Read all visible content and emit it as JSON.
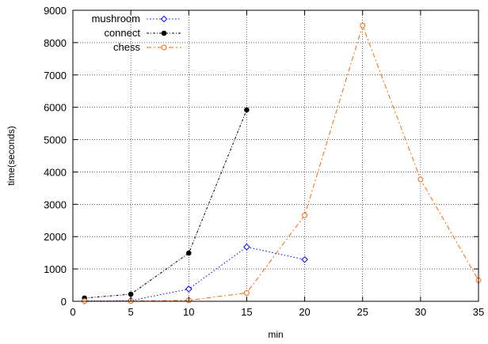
{
  "chart_data": {
    "type": "line",
    "title": "",
    "xlabel": "min",
    "ylabel": "time(seconds)",
    "xlim": [
      0,
      35
    ],
    "ylim": [
      0,
      9000
    ],
    "xticks": [
      0,
      5,
      10,
      15,
      20,
      25,
      30,
      35
    ],
    "yticks": [
      0,
      1000,
      2000,
      3000,
      4000,
      5000,
      6000,
      7000,
      8000,
      9000
    ],
    "grid": true,
    "legend_position": "top-left",
    "series": [
      {
        "name": "mushroom",
        "color": "#0000ff",
        "marker": "diamond-open",
        "dash": "dotted",
        "x": [
          1,
          5,
          10,
          15,
          20
        ],
        "y": [
          10,
          20,
          380,
          1680,
          1290
        ]
      },
      {
        "name": "connect",
        "color": "#000000",
        "marker": "circle-filled",
        "dash": "dash-dot-fine",
        "x": [
          1,
          5,
          10,
          15
        ],
        "y": [
          100,
          220,
          1490,
          5920
        ]
      },
      {
        "name": "chess",
        "color": "#ff6600",
        "marker": "circle-open",
        "dash": "dash-dot",
        "x": [
          1,
          5,
          10,
          15,
          20,
          25,
          30,
          35
        ],
        "y": [
          5,
          10,
          30,
          260,
          2660,
          8530,
          3770,
          650
        ]
      }
    ]
  }
}
